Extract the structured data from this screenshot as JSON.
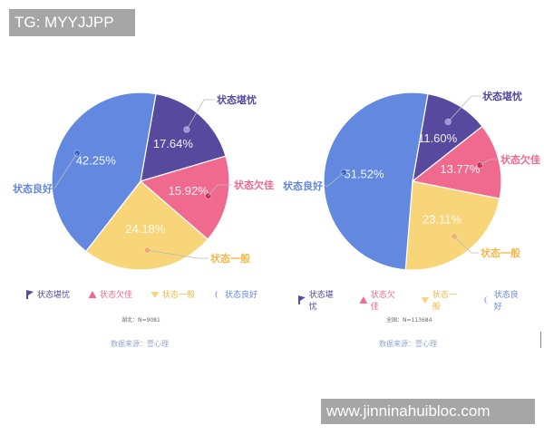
{
  "watermarks": {
    "top_left": "TG: MYYJJPP",
    "bottom_right": "www.jinninahuibloc.com"
  },
  "colors": {
    "worrying": "#56499e",
    "poor": "#f0698f",
    "average": "#f9d57a",
    "good": "#6288df"
  },
  "legend": [
    {
      "label": "状态堪忧",
      "color": "#56499e",
      "marker": "flag-icon"
    },
    {
      "label": "状态欠佳",
      "color": "#f0698f",
      "marker": "triangle-icon"
    },
    {
      "label": "状态一般",
      "color": "#f9d57a",
      "marker": "heart-icon"
    },
    {
      "label": "状态良好",
      "color": "#6288df",
      "marker": "moon-icon"
    }
  ],
  "left_chart": {
    "sample_note": "湖北：N=9081",
    "source": "数据来源：壹心理"
  },
  "right_chart": {
    "sample_note": "全国：N=113684",
    "source": "数据来源：壹心理"
  },
  "chart_data": [
    {
      "type": "pie",
      "title": "湖北：N=9081",
      "categories": [
        "状态堪忧",
        "状态欠佳",
        "状态一般",
        "状态良好"
      ],
      "values": [
        17.64,
        15.92,
        24.18,
        42.25
      ],
      "labels": [
        "17.64%",
        "15.92%",
        "24.18%",
        "42.25%"
      ],
      "colors": [
        "#56499e",
        "#f0698f",
        "#f9d57a",
        "#6288df"
      ],
      "legend_position": "bottom",
      "source": "数据来源：壹心理"
    },
    {
      "type": "pie",
      "title": "全国：N=113684",
      "categories": [
        "状态堪忧",
        "状态欠佳",
        "状态一般",
        "状态良好"
      ],
      "values": [
        11.6,
        13.77,
        23.11,
        51.52
      ],
      "labels": [
        "11.60%",
        "13.77%",
        "23.11%",
        "51.52%"
      ],
      "colors": [
        "#56499e",
        "#f0698f",
        "#f9d57a",
        "#6288df"
      ],
      "legend_position": "bottom",
      "source": "数据来源：壹心理"
    }
  ]
}
